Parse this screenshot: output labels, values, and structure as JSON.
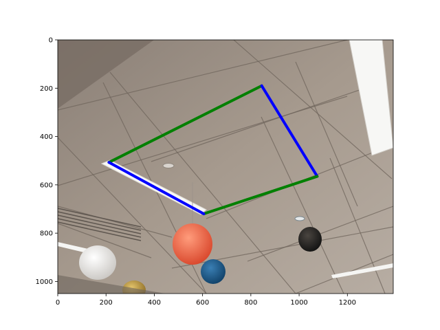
{
  "chart_data": {
    "type": "scatter",
    "title": "",
    "xlabel": "",
    "ylabel": "",
    "xlim": [
      0,
      1390
    ],
    "ylim": [
      1050,
      0
    ],
    "x_ticks": [
      0,
      200,
      400,
      600,
      800,
      1000,
      1200
    ],
    "y_ticks": [
      0,
      200,
      400,
      600,
      800,
      1000
    ],
    "x_tick_labels": [
      "0",
      "200",
      "400",
      "600",
      "800",
      "1000",
      "1200"
    ],
    "y_tick_labels": [
      "0",
      "200",
      "400",
      "600",
      "800",
      "1000"
    ],
    "grid": false,
    "background": "photo of an office ceiling with hanging paper lanterns",
    "segments": [
      {
        "color": "#008000",
        "points": [
          [
            212,
            507
          ],
          [
            845,
            190
          ]
        ]
      },
      {
        "color": "#0000ff",
        "points": [
          [
            845,
            190
          ],
          [
            1075,
            565
          ]
        ]
      },
      {
        "color": "#008000",
        "points": [
          [
            1075,
            565
          ],
          [
            605,
            720
          ]
        ]
      },
      {
        "color": "#0000ff",
        "points": [
          [
            605,
            720
          ],
          [
            212,
            507
          ]
        ]
      }
    ]
  }
}
